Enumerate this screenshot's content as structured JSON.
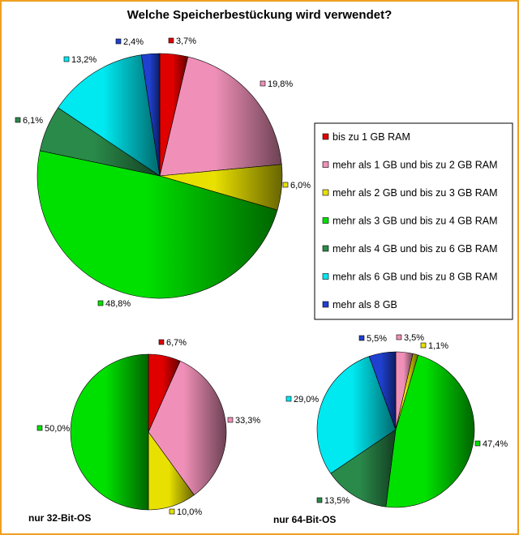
{
  "chart_data": [
    {
      "type": "pie",
      "title": "Welche Speicherbestückung wird verwendet?",
      "categories": [
        "bis zu 1 GB RAM",
        "mehr als 1 GB und bis zu 2 GB RAM",
        "mehr als 2 GB und bis zu 3 GB RAM",
        "mehr als 3 GB und bis zu 4 GB RAM",
        "mehr als 4 GB und bis zu 6 GB RAM",
        "mehr als 6 GB und bis zu 8 GB RAM",
        "mehr als 8 GB"
      ],
      "values": [
        3.7,
        19.8,
        6.0,
        48.8,
        6.1,
        13.2,
        2.4
      ],
      "labels": [
        "3,7%",
        "19,8%",
        "6,0%",
        "48,8%",
        "6,1%",
        "13,2%",
        "2,4%"
      ],
      "colors": [
        "#e00000",
        "#f090b8",
        "#e8e000",
        "#00e000",
        "#2a8a4a",
        "#00e8f0",
        "#2040d0"
      ],
      "legend": "right"
    },
    {
      "type": "pie",
      "caption": "nur 32-Bit-OS",
      "values": [
        6.7,
        33.3,
        10.0,
        50.0
      ],
      "labels": [
        "6,7%",
        "33,3%",
        "10,0%",
        "50,0%"
      ],
      "series_index": [
        0,
        1,
        2,
        3
      ]
    },
    {
      "type": "pie",
      "caption": "nur 64-Bit-OS",
      "values": [
        3.5,
        1.1,
        47.4,
        13.5,
        29.0,
        5.5
      ],
      "labels": [
        "3,5%",
        "1,1%",
        "47,4%",
        "13,5%",
        "29,0%",
        "5,5%"
      ],
      "series_index": [
        1,
        2,
        3,
        4,
        5,
        6
      ]
    }
  ]
}
